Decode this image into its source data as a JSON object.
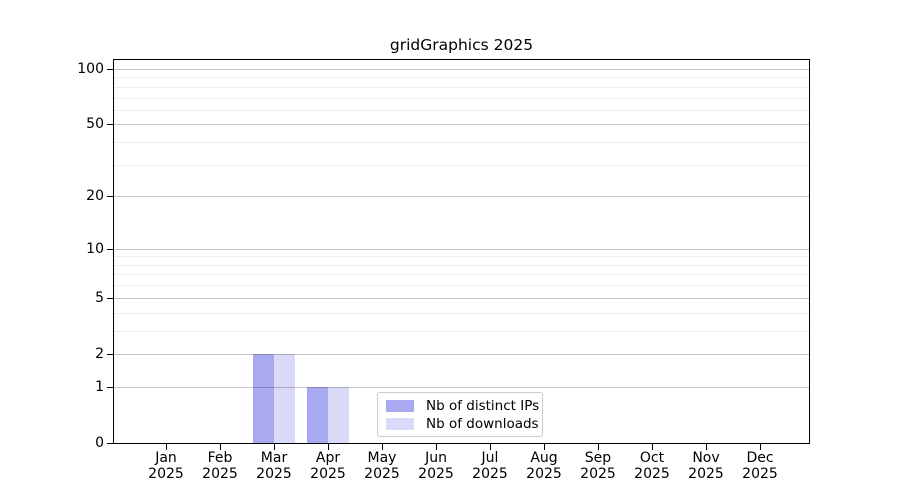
{
  "title": "gridGraphics 2025",
  "legend": {
    "items": [
      {
        "label": "Nb of distinct IPs",
        "color": "#a9a9f2"
      },
      {
        "label": "Nb of downloads",
        "color": "#d9d9f8"
      }
    ]
  },
  "x_axis": {
    "months": [
      "Jan",
      "Feb",
      "Mar",
      "Apr",
      "May",
      "Jun",
      "Jul",
      "Aug",
      "Sep",
      "Oct",
      "Nov",
      "Dec"
    ],
    "year": "2025"
  },
  "y_axis": {
    "tick_labels": [
      "0",
      "1",
      "2",
      "5",
      "10",
      "20",
      "50",
      "100"
    ]
  },
  "chart_data": {
    "type": "bar",
    "title": "gridGraphics 2025",
    "categories": [
      "Jan 2025",
      "Feb 2025",
      "Mar 2025",
      "Apr 2025",
      "May 2025",
      "Jun 2025",
      "Jul 2025",
      "Aug 2025",
      "Sep 2025",
      "Oct 2025",
      "Nov 2025",
      "Dec 2025"
    ],
    "series": [
      {
        "name": "Nb of distinct IPs",
        "color": "#a9a9f2",
        "values": [
          0,
          0,
          2,
          1,
          0,
          0,
          0,
          0,
          0,
          0,
          0,
          0
        ]
      },
      {
        "name": "Nb of downloads",
        "color": "#d9d9f8",
        "values": [
          0,
          0,
          2,
          1,
          0,
          0,
          0,
          0,
          0,
          0,
          0,
          0
        ]
      }
    ],
    "yscale": "log1p",
    "ylim": [
      0,
      113
    ],
    "yticks_major": [
      0,
      1,
      2,
      5,
      10,
      20,
      50,
      100
    ],
    "yticks_minor": [
      3,
      4,
      6,
      7,
      8,
      9,
      30,
      40,
      60,
      70,
      80,
      90
    ],
    "grid": true,
    "legend_position": "lower center inside"
  }
}
